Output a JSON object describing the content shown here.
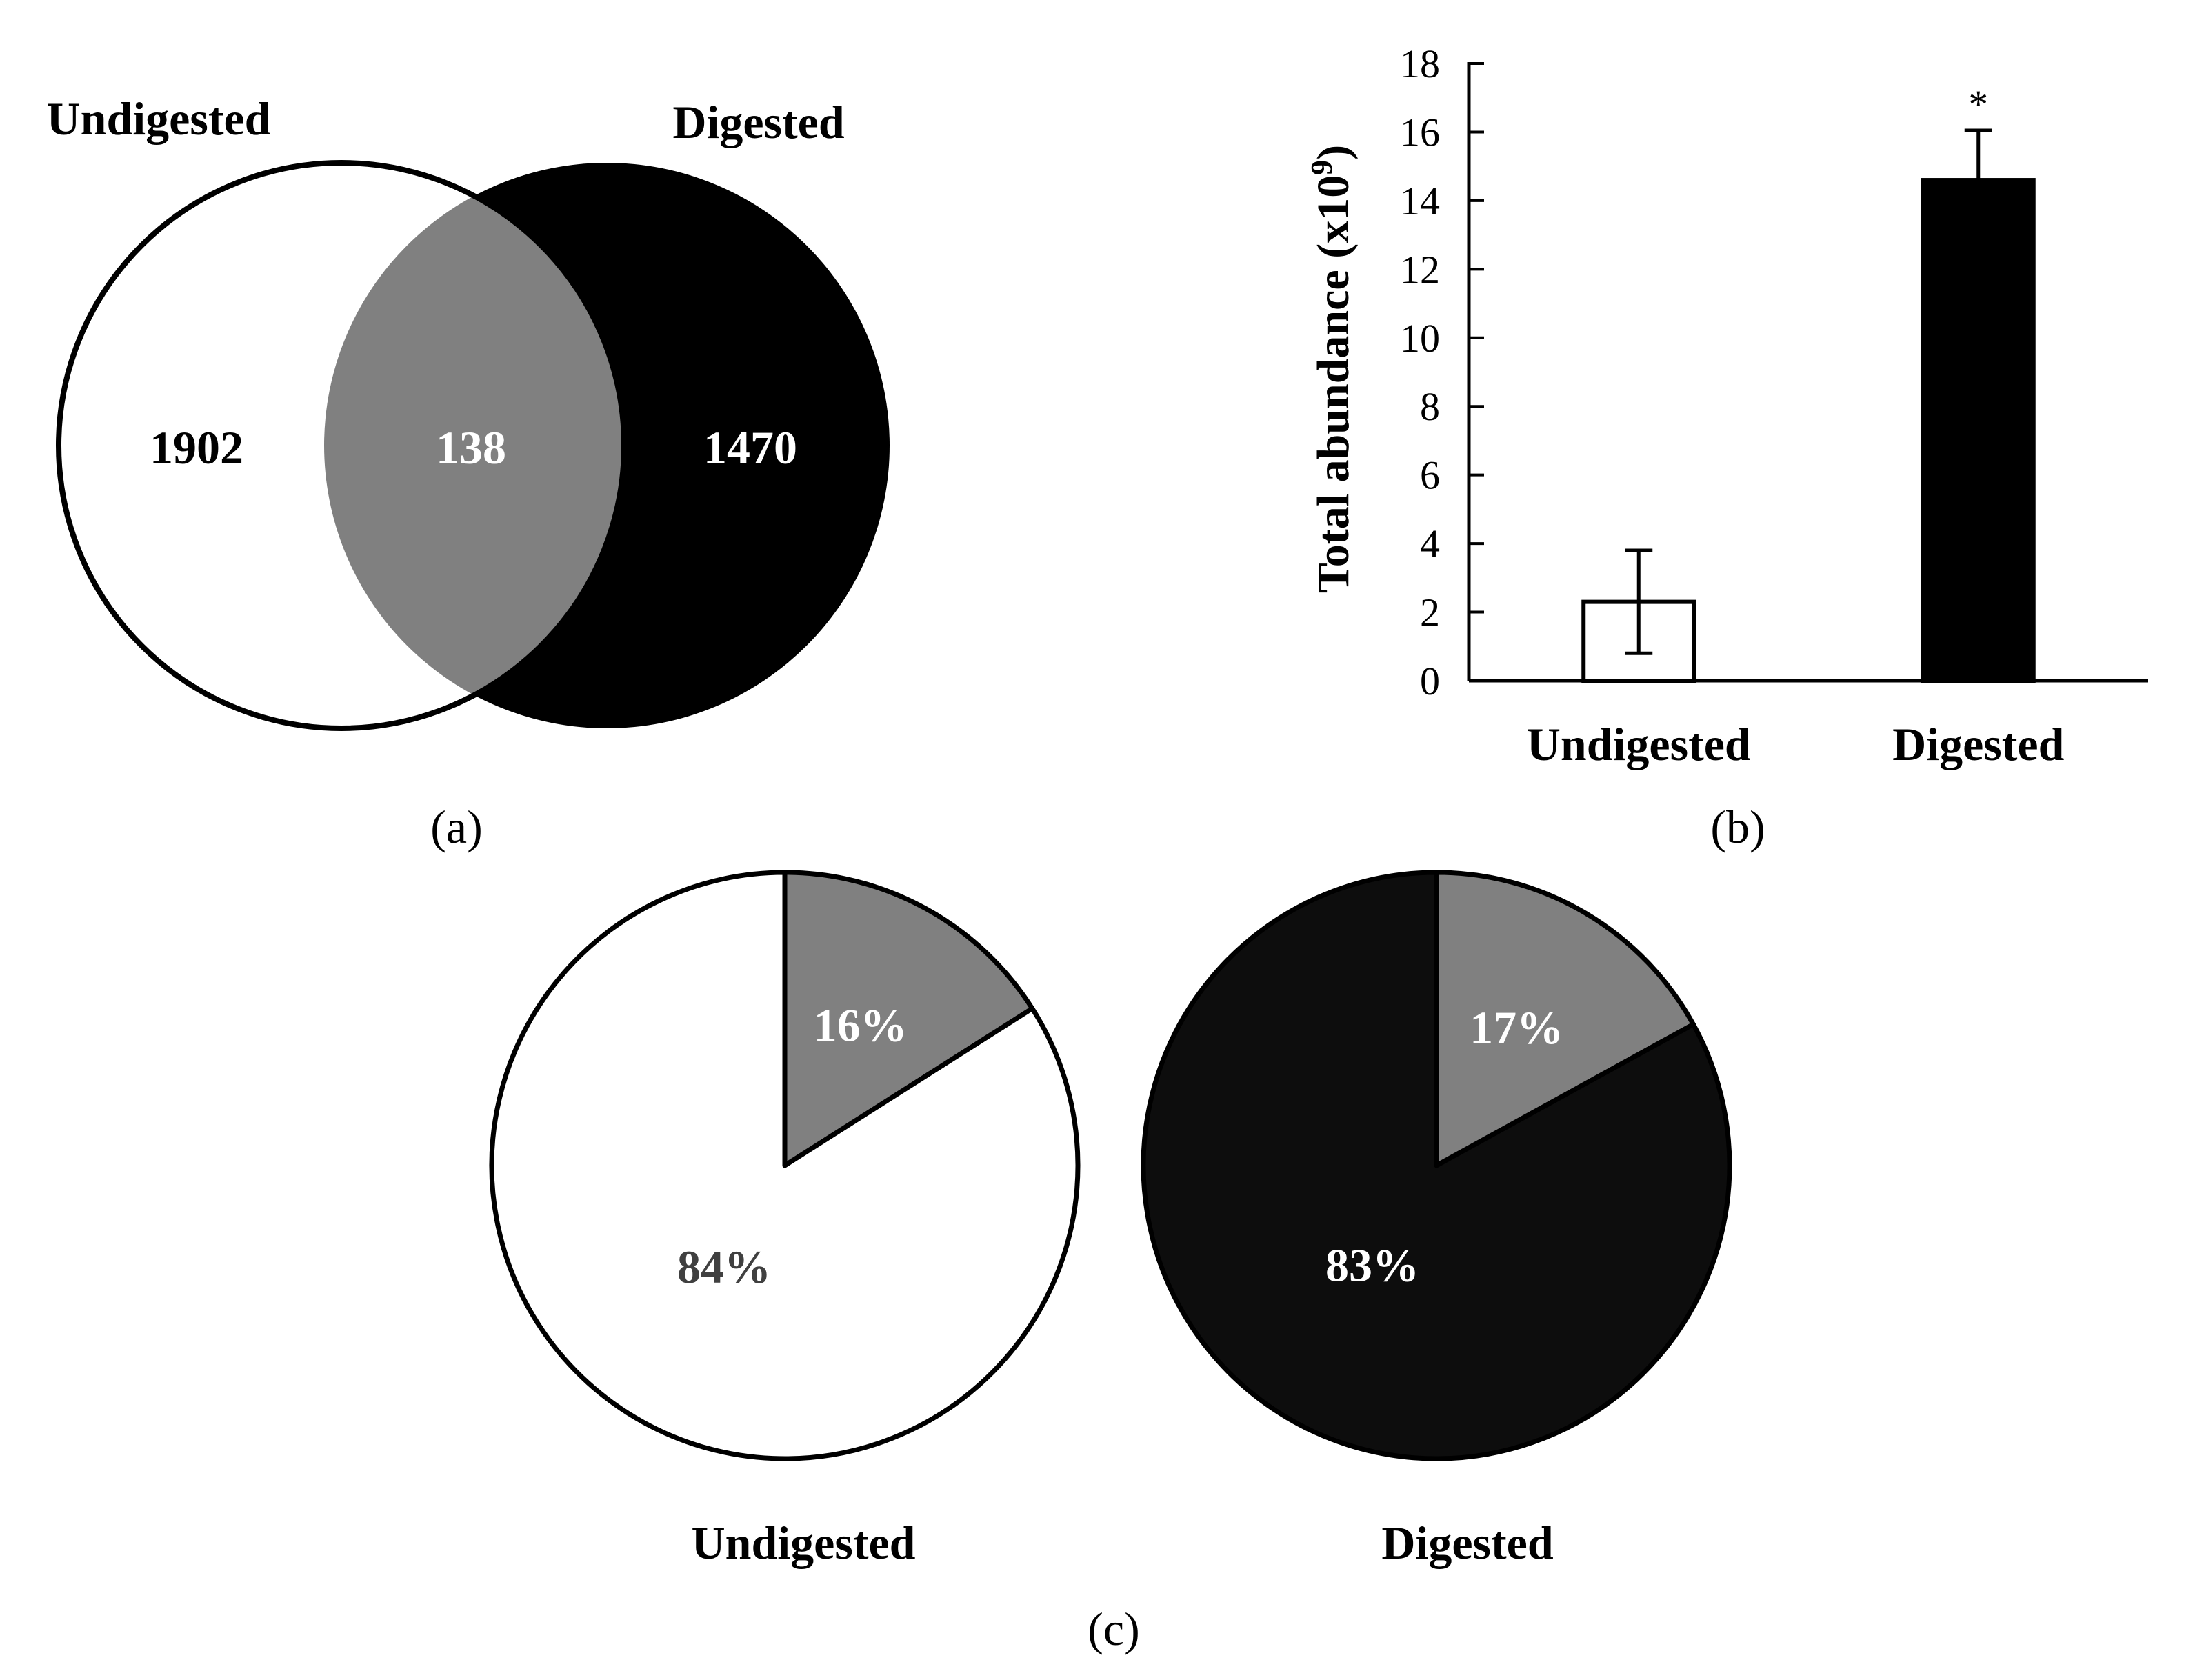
{
  "colors": {
    "undigested_fill": "#ffffff",
    "digested_fill": "#000000",
    "pie_digested_fill": "#0d0d0d",
    "overlap_fill": "#808080",
    "outline": "#000000",
    "label_dark": "#000000",
    "label_light": "#ffffff",
    "label_grey_text": "#404040"
  },
  "panels": {
    "a": {
      "tag": "(a)"
    },
    "b": {
      "tag": "(b)"
    },
    "c": {
      "tag": "(c)"
    }
  },
  "chart_data": [
    {
      "panel": "a",
      "type": "venn",
      "sets": [
        {
          "name": "Undigested",
          "only": "1902"
        },
        {
          "name": "Digested",
          "only": "1470"
        }
      ],
      "overlap": "138"
    },
    {
      "panel": "b",
      "type": "bar",
      "categories": [
        "Undigested",
        "Digested"
      ],
      "values": [
        2.3,
        14.6
      ],
      "errors": [
        1.5,
        1.45
      ],
      "significance": [
        "",
        "*"
      ],
      "ylabel": "Total abundance (x10",
      "ylabel_sup": "9",
      "ylabel_close": ")",
      "ylim": [
        0,
        18
      ],
      "yticks": [
        0,
        2,
        4,
        6,
        8,
        10,
        12,
        14,
        16,
        18
      ],
      "grid": false
    },
    {
      "panel": "c",
      "type": "pie",
      "pies": [
        {
          "name": "Undigested",
          "slices": [
            {
              "value": 16,
              "label": "16%"
            },
            {
              "value": 84,
              "label": "84%"
            }
          ]
        },
        {
          "name": "Digested",
          "slices": [
            {
              "value": 17,
              "label": "17%"
            },
            {
              "value": 83,
              "label": "83%"
            }
          ]
        }
      ]
    }
  ]
}
